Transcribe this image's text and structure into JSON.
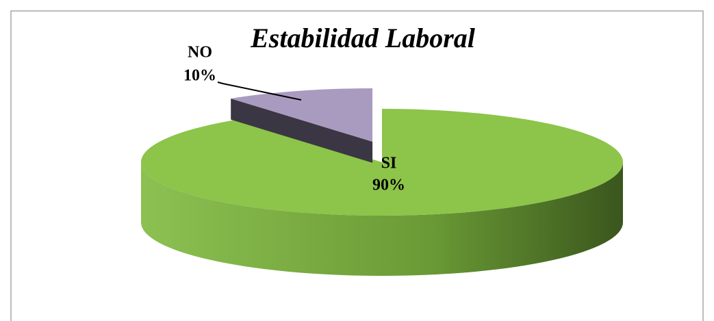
{
  "chart_data": {
    "type": "pie",
    "title": "Estabilidad Laboral",
    "categories": [
      "SI",
      "NO"
    ],
    "values": [
      90,
      10
    ],
    "value_labels": [
      "90%",
      "10%"
    ],
    "colors": [
      "#8dc44a",
      "#a99bc0"
    ],
    "three_d": true,
    "exploded": [
      false,
      true
    ]
  }
}
